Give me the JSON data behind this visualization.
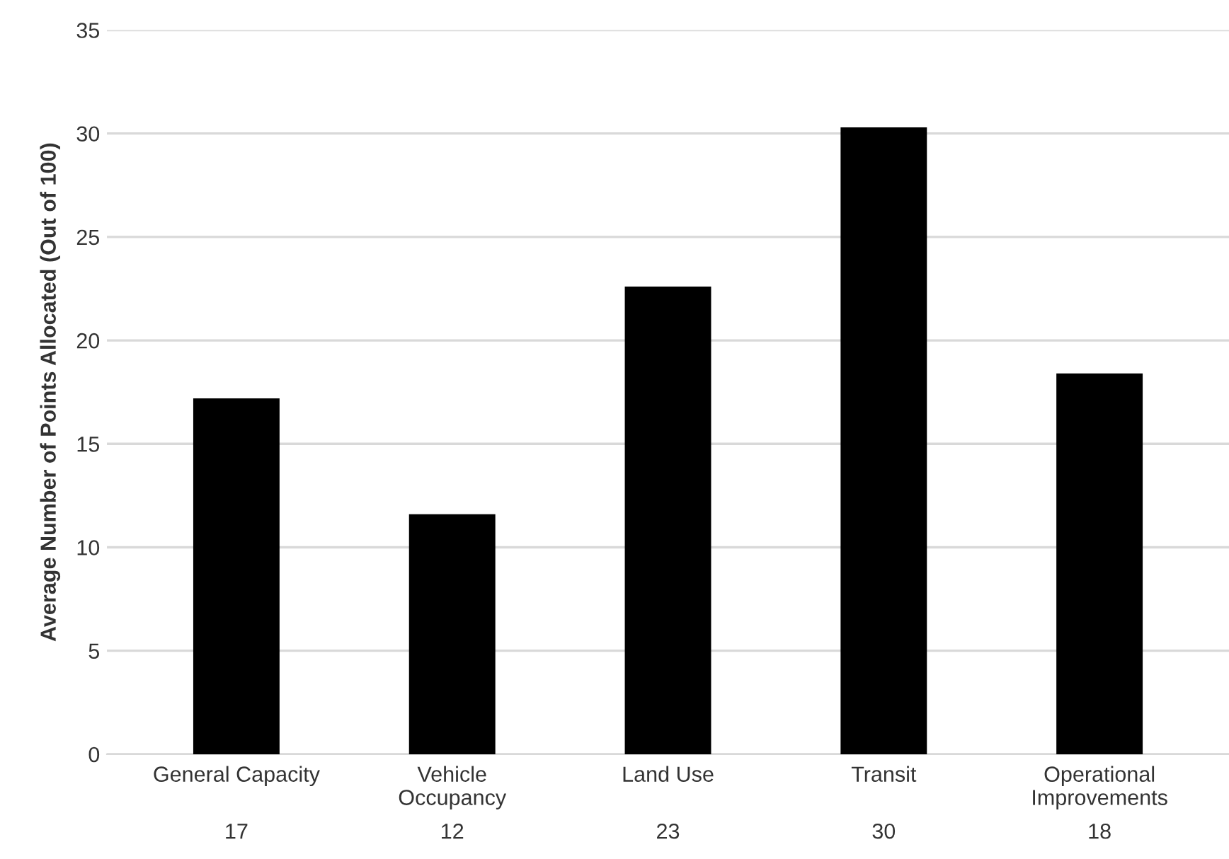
{
  "chart_data": {
    "type": "bar",
    "ylabel": "Average Number of Points Allocated (Out of 100)",
    "categories": [
      "General Capacity",
      "Vehicle\nOccupancy",
      "Land Use",
      "Transit",
      "Operational\nImprovements"
    ],
    "values": [
      17.2,
      11.6,
      22.6,
      30.3,
      18.4
    ],
    "value_labels": [
      "17",
      "12",
      "23",
      "30",
      "18"
    ],
    "color": "#000000",
    "ylim": [
      0,
      35
    ],
    "yticks": [
      0,
      5,
      10,
      15,
      20,
      25,
      30,
      35
    ],
    "grid": "y"
  }
}
